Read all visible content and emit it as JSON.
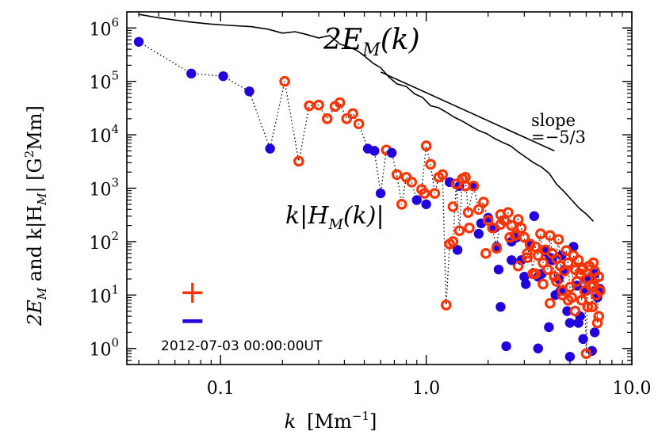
{
  "chart_data": {
    "type": "scatter",
    "xscale": "log",
    "yscale": "log",
    "xlim": [
      0.035,
      10.0
    ],
    "ylim": [
      0.5,
      2000000
    ],
    "x_tick_labels": [
      "0.1",
      "1.0",
      "10.0"
    ],
    "x_ticks": [
      0.1,
      1.0,
      10.0
    ],
    "y_ticks": [
      1,
      10,
      100,
      1000,
      10000,
      100000,
      1000000
    ],
    "y_tick_base": "10",
    "y_tick_exponents": [
      "0",
      "1",
      "2",
      "3",
      "4",
      "5",
      "6"
    ],
    "xlabel": {
      "var": "k",
      "unit": "[Mm",
      "unit_exp": "−1",
      "close": "]"
    },
    "ylabel": {
      "pre": "2E",
      "sub1": "M",
      "mid": " and k|H",
      "sub2": "M",
      "post": "|   [G",
      "sup": "2",
      "tail": "Mm]"
    },
    "annotations": {
      "em_label": {
        "pre": "2E",
        "sub": "M",
        "post": "(k)"
      },
      "hm_label": {
        "pre": "k|H",
        "sub": "M",
        "post": "(k)|"
      },
      "slope_line1": "slope",
      "slope_line2": "=−5/3",
      "plus_sign": "+",
      "minus_sign": "−",
      "timestamp": "2012-07-03 00:00:00UT"
    },
    "colors": {
      "positive": "#ff3300",
      "negative": "#2200dd",
      "em_line": "#000000"
    },
    "series": [
      {
        "kind": "line",
        "x": [
          0.04,
          0.05,
          0.07,
          0.09,
          0.11,
          0.14,
          0.17,
          0.2,
          0.23,
          0.26,
          0.3,
          0.34,
          0.38,
          0.42,
          0.46,
          0.5,
          0.55,
          0.6,
          0.66,
          0.72,
          0.8,
          0.88,
          0.96,
          1.05,
          1.15,
          1.26,
          1.38,
          1.5,
          1.65,
          1.8,
          1.97,
          2.15,
          2.35,
          2.57,
          2.8,
          3.05,
          3.33,
          3.63,
          3.96,
          4.3,
          4.7,
          5.1,
          5.55,
          6.05,
          6.5
        ],
        "y": [
          1800000,
          1550000,
          1300000,
          1180000,
          1120000,
          1060000,
          950000,
          800000,
          850000,
          760000,
          650000,
          720000,
          500000,
          440000,
          380000,
          300000,
          220000,
          180000,
          120000,
          90000,
          80000,
          58000,
          50000,
          35000,
          32000,
          26000,
          21000,
          18000,
          14500,
          12000,
          10500,
          8500,
          7200,
          6200,
          4800,
          3800,
          3000,
          2500,
          1900,
          1200,
          850,
          600,
          420,
          320,
          240
        ]
      },
      {
        "kind": "reference_line",
        "x": [
          0.6,
          4.2
        ],
        "y": [
          150000,
          5000
        ]
      },
      {
        "kind": "scatter_dotted",
        "x": [
          0.04,
          0.072,
          0.103,
          0.138,
          0.174,
          0.205,
          0.24,
          0.27,
          0.3,
          0.33,
          0.36,
          0.38,
          0.41,
          0.44,
          0.47,
          0.52,
          0.56,
          0.6,
          0.64,
          0.68,
          0.72,
          0.76,
          0.8,
          0.85,
          0.9,
          0.95,
          1.0,
          1.05,
          1.1,
          1.15,
          1.2,
          1.25,
          1.3,
          1.35,
          1.4,
          1.45,
          1.5,
          1.55,
          1.6,
          1.7,
          1.8,
          1.9,
          2.0,
          2.1,
          2.2,
          2.3,
          2.4,
          2.5,
          2.6,
          2.7,
          2.8,
          2.9,
          3.0,
          3.1,
          3.2,
          3.3,
          3.4,
          3.5,
          3.6,
          3.7,
          3.8,
          3.9,
          4.0,
          4.1,
          4.2,
          4.3,
          4.4,
          4.5,
          4.6,
          4.7,
          4.8,
          4.9,
          5.0,
          5.1,
          5.2,
          5.3,
          5.4,
          5.5,
          5.6,
          5.7,
          5.8,
          5.9,
          6.0,
          6.1,
          6.2,
          6.3,
          6.4,
          6.5,
          6.6,
          6.7,
          6.8,
          6.9,
          7.0
        ],
        "y": [
          550000,
          140000,
          125000,
          65000,
          5500,
          100000,
          3200,
          35000,
          36000,
          20000,
          34000,
          40000,
          20000,
          25000,
          16000,
          5500,
          5000,
          800,
          5200,
          4600,
          1800,
          500,
          1600,
          1300,
          600,
          950,
          6200,
          2800,
          800,
          1600,
          1800,
          6.5,
          90,
          100,
          1200,
          160,
          1500,
          1600,
          350,
          1100,
          400,
          550,
          250,
          180,
          75,
          320,
          250,
          350,
          200,
          130,
          260,
          180,
          120,
          50,
          90,
          25,
          80,
          55,
          140,
          40,
          70,
          30,
          130,
          60,
          22,
          48,
          110,
          35,
          12,
          28,
          68,
          40,
          14,
          9,
          55,
          30,
          18,
          45,
          25,
          8,
          32,
          12,
          0.8,
          20,
          35,
          15,
          6,
          40,
          28,
          10,
          3,
          22,
          12
        ],
        "signs": [
          -1,
          -1,
          -1,
          -1,
          -1,
          1,
          1,
          1,
          1,
          1,
          1,
          1,
          1,
          1,
          1,
          -1,
          -1,
          -1,
          1,
          -1,
          1,
          1,
          1,
          1,
          -1,
          1,
          1,
          1,
          1,
          1,
          1,
          1,
          1,
          1,
          1,
          1,
          1,
          1,
          1,
          1,
          1,
          1,
          1,
          1,
          1,
          1,
          1,
          1,
          1,
          1,
          1,
          1,
          1,
          1,
          1,
          1,
          1,
          1,
          1,
          1,
          1,
          1,
          1,
          1,
          1,
          1,
          1,
          1,
          1,
          1,
          1,
          1,
          1,
          1,
          1,
          1,
          1,
          1,
          1,
          1,
          1,
          1,
          1,
          1,
          1,
          1,
          1,
          1,
          1,
          1,
          1,
          1,
          1
        ]
      },
      {
        "kind": "scatter_extra",
        "x": [
          1.0,
          1.3,
          1.45,
          1.55,
          1.7,
          1.85,
          2.0,
          2.15,
          2.25,
          2.3,
          2.45,
          2.6,
          2.75,
          2.9,
          3.05,
          3.2,
          3.35,
          3.5,
          3.65,
          3.8,
          3.95,
          4.1,
          4.25,
          4.4,
          4.55,
          4.7,
          4.85,
          5.0,
          5.2,
          5.4,
          5.6,
          5.8,
          6.0,
          6.2,
          6.4,
          6.6,
          6.8,
          7.0,
          0.98,
          1.35,
          1.62,
          1.95,
          2.3,
          2.55,
          2.8,
          3.1,
          3.4,
          3.7,
          4.0,
          4.3,
          4.6,
          4.9,
          5.3,
          5.7,
          6.1,
          6.5,
          6.9,
          1.42,
          1.8,
          2.2,
          2.6,
          3.0,
          3.5,
          4.0,
          4.5,
          5.0,
          5.5,
          6.0,
          6.6
        ],
        "y": [
          500,
          1300,
          1100,
          1100,
          1100,
          220,
          280,
          180,
          30,
          6,
          1.1,
          100,
          120,
          45,
          16,
          85,
          300,
          22,
          25,
          65,
          2.5,
          45,
          10,
          20,
          55,
          30,
          5,
          3,
          80,
          15,
          4,
          1.5,
          12,
          20,
          0.9,
          2,
          9,
          13,
          800,
          450,
          180,
          60,
          210,
          120,
          35,
          60,
          25,
          16,
          7,
          18,
          10,
          8,
          5,
          30,
          6,
          15,
          4,
          70,
          140,
          80,
          45,
          22,
          1.0,
          50,
          12,
          0.7,
          3,
          20,
          25
        ],
        "signs": [
          -1,
          -1,
          -1,
          1,
          -1,
          -1,
          -1,
          -1,
          -1,
          -1,
          -1,
          -1,
          -1,
          -1,
          -1,
          -1,
          -1,
          -1,
          -1,
          -1,
          -1,
          -1,
          -1,
          -1,
          -1,
          -1,
          -1,
          -1,
          -1,
          -1,
          -1,
          -1,
          -1,
          -1,
          -1,
          -1,
          -1,
          -1,
          1,
          1,
          1,
          1,
          1,
          1,
          1,
          1,
          1,
          1,
          1,
          1,
          1,
          1,
          1,
          1,
          1,
          1,
          1,
          -1,
          -1,
          -1,
          -1,
          -1,
          -1,
          -1,
          -1,
          -1,
          -1,
          -1,
          -1
        ]
      }
    ]
  }
}
